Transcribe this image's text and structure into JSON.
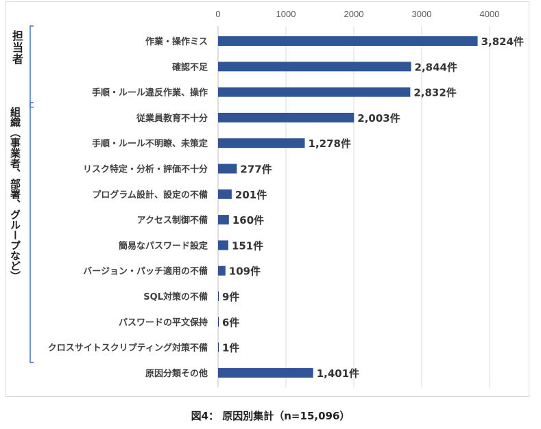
{
  "chart_data": {
    "type": "bar",
    "orientation": "horizontal",
    "categories": [
      "作業・操作ミス",
      "確認不足",
      "手順・ルール違反作業、操作",
      "従業員教育不十分",
      "手順・ルール不明瞭、未策定",
      "リスク特定・分析・評価不十分",
      "プログラム設計、設定の不備",
      "アクセス制御不備",
      "簡易なパスワード設定",
      "バージョン・パッチ適用の不備",
      "SQL対策の不備",
      "パスワードの平文保持",
      "クロスサイトスクリプティング対策不備",
      "原因分類その他"
    ],
    "values": [
      3824,
      2844,
      2832,
      2003,
      1278,
      277,
      201,
      160,
      151,
      109,
      9,
      6,
      1,
      1401
    ],
    "data_labels": [
      "3,824件",
      "2,844件",
      "2,832件",
      "2,003件",
      "1,278件",
      "277件",
      "201件",
      "160件",
      "151件",
      "109件",
      "9件",
      "6件",
      "1件",
      "1,401件"
    ],
    "x_ticks": [
      0,
      1000,
      2000,
      3000,
      4000
    ],
    "x_tick_labels": [
      "0",
      "1000",
      "2000",
      "3000",
      "4000"
    ],
    "xlim": [
      0,
      4000
    ],
    "tick_position": "top",
    "grid": true,
    "bar_color": "#2F5597",
    "groups": [
      {
        "label": "担当者",
        "from": 0,
        "to": 2
      },
      {
        "label": "組織（事業者、部署、グループなど）",
        "from": 3,
        "to": 12
      }
    ],
    "title": "図4： 原因別集計（n=15,096）"
  }
}
